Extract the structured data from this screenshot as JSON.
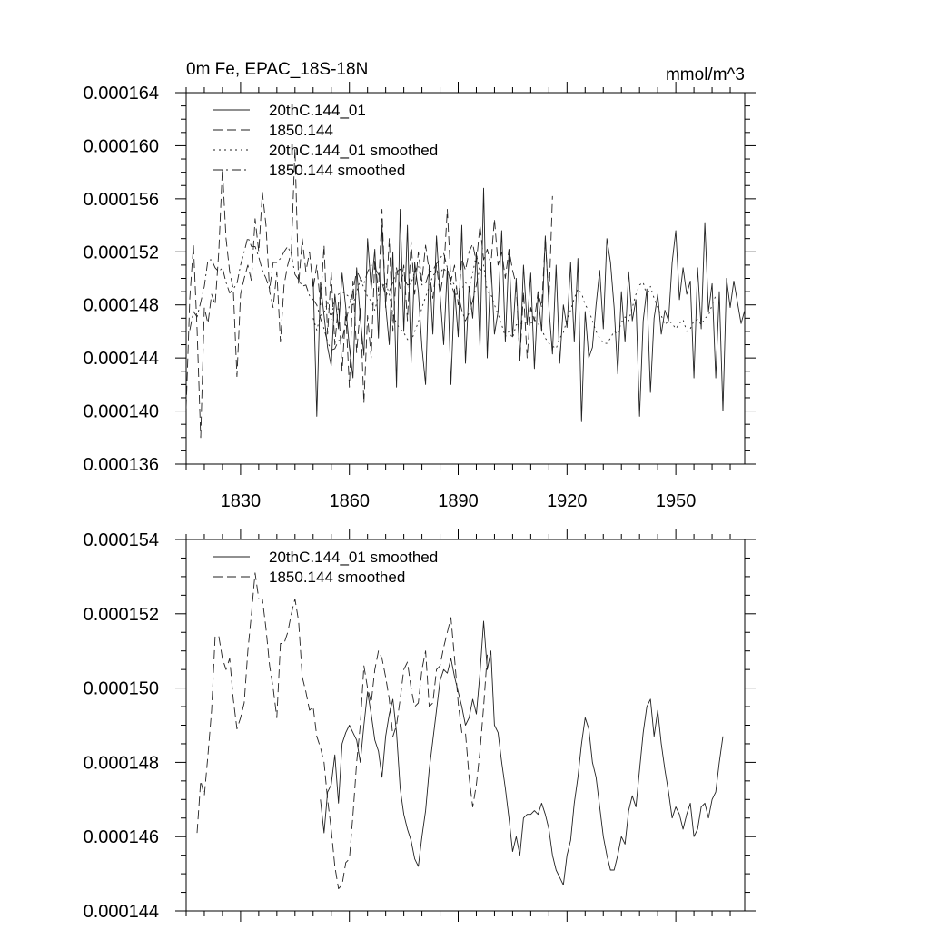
{
  "chart_data": [
    {
      "type": "line",
      "title": "0m Fe, EPAC_18S-18N",
      "units": "mmol/m^3",
      "xlabel": "",
      "ylabel": "",
      "xlim": [
        1815,
        1969
      ],
      "ylim": [
        0.000136,
        0.000164
      ],
      "xticks": [
        1830,
        1860,
        1890,
        1920,
        1950
      ],
      "xtick_labels": [
        "1830",
        "1860",
        "1890",
        "1920",
        "1950"
      ],
      "yticks": [
        0.000136,
        0.00014,
        0.000144,
        0.000148,
        0.000152,
        0.000156,
        0.00016,
        0.000164
      ],
      "ytick_labels": [
        "0.000136",
        "0.000140",
        "0.000144",
        "0.000148",
        "0.000152",
        "0.000156",
        "0.000160",
        "0.000164"
      ],
      "legend_position": "top-left",
      "series": [
        {
          "name": "20thC.144_01",
          "style": "solid",
          "x_start": 1850,
          "values": [
            0.00015,
            0.0001396,
            0.0001497,
            0.0001472,
            0.0001448,
            0.0001434,
            0.0001488,
            0.0001462,
            0.0001504,
            0.0001478,
            0.0001448,
            0.0001425,
            0.0001508,
            0.000147,
            0.0001442,
            0.000153,
            0.0001492,
            0.0001522,
            0.0001455,
            0.000154,
            0.000148,
            0.000145,
            0.000152,
            0.0001418,
            0.0001552,
            0.000146,
            0.000154,
            0.0001436,
            0.0001512,
            0.000149,
            0.0001448,
            0.000142,
            0.000151,
            0.0001458,
            0.0001532,
            0.0001488,
            0.000145,
            0.0001508,
            0.000142,
            0.0001492,
            0.0001456,
            0.000154,
            0.0001436,
            0.0001494,
            0.000147,
            0.000152,
            0.0001448,
            0.0001568,
            0.000144,
            0.0001512,
            0.0001458,
            0.0001475,
            0.0001536,
            0.0001452,
            0.000152,
            0.0001456,
            0.00015,
            0.0001438,
            0.000151,
            0.0001465,
            0.0001504,
            0.0001432,
            0.0001488,
            0.000146,
            0.0001532,
            0.0001478,
            0.0001443,
            0.000151,
            0.0001436,
            0.000148,
            0.0001463,
            0.0001512,
            0.0001452,
            0.0001515,
            0.0001392,
            0.0001475,
            0.000144,
            0.0001448,
            0.000148,
            0.0001506,
            0.0001462,
            0.000153,
            0.0001512,
            0.0001478,
            0.0001428,
            0.000149,
            0.0001452,
            0.0001505,
            0.0001468,
            0.0001484,
            0.0001396,
            0.0001468,
            0.0001492,
            0.0001414,
            0.000147,
            0.0001488,
            0.0001458,
            0.0001476,
            0.0001468,
            0.0001512,
            0.0001536,
            0.0001484,
            0.0001508,
            0.0001488,
            0.0001498,
            0.0001425,
            0.0001508,
            0.0001462,
            0.0001542,
            0.0001475,
            0.0001496,
            0.0001425,
            0.000149,
            0.00014,
            0.00015,
            0.0001478,
            0.0001498,
            0.0001482,
            0.0001466,
            0.0001476,
            0.0001522
          ]
        },
        {
          "name": "1850.144",
          "style": "dashed",
          "x_start": 1815,
          "values": [
            0.0001402,
            0.0001485,
            0.0001525,
            0.0001462,
            0.000138,
            0.0001478,
            0.0001466,
            0.0001488,
            0.000148,
            0.000152,
            0.0001583,
            0.000153,
            0.0001505,
            0.0001492,
            0.0001426,
            0.0001488,
            0.00015,
            0.000151,
            0.0001498,
            0.0001545,
            0.000152,
            0.0001565,
            0.000154,
            0.000149,
            0.0001478,
            0.0001505,
            0.0001452,
            0.0001495,
            0.000151,
            0.000152,
            0.0001598,
            0.0001495,
            0.000153,
            0.0001505,
            0.000152,
            0.0001492,
            0.000151,
            0.000148,
            0.0001525,
            0.0001458,
            0.0001505,
            0.000145,
            0.0001482,
            0.000143,
            0.0001475,
            0.0001418,
            0.0001498,
            0.0001444,
            0.0001478,
            0.0001406,
            0.0001472,
            0.000144,
            0.0001515,
            0.000149,
            0.0001552,
            0.0001478,
            0.000153,
            0.000146,
            0.0001508,
            0.0001492,
            0.000151,
            0.0001468,
            0.0001528,
            0.0001488,
            0.000152,
            0.0001498,
            0.0001525,
            0.0001505,
            0.0001485,
            0.000151,
            0.0001488,
            0.0001504,
            0.0001552,
            0.0001498,
            0.000151,
            0.000148,
            0.0001515,
            0.0001506,
            0.000152,
            0.0001526,
            0.0001512,
            0.000154,
            0.0001514,
            0.0001522,
            0.000151,
            0.0001545,
            0.000151,
            0.000152,
            0.00015,
            0.0001522,
            0.0001506,
            0.0001495,
            0.0001438,
            0.000149,
            0.000144,
            0.0001478,
            0.0001468,
            0.000149,
            0.0001478,
            0.000153,
            0.0001482,
            0.0001562
          ]
        },
        {
          "name": "20thC.144_01 smoothed",
          "style": "dotted",
          "x_start": 1850,
          "values": [
            0.000147,
            0.0001461,
            0.0001472,
            0.0001474,
            0.0001482,
            0.0001469,
            0.0001485,
            0.0001488,
            0.000149,
            0.0001488,
            0.0001486,
            0.000148,
            0.000149,
            0.0001499,
            0.0001493,
            0.0001486,
            0.0001483,
            0.0001476,
            0.0001487,
            0.0001493,
            0.0001497,
            0.0001488,
            0.0001473,
            0.0001466,
            0.0001462,
            0.0001459,
            0.0001454,
            0.0001452,
            0.000146,
            0.0001467,
            0.0001478,
            0.0001486,
            0.0001494,
            0.0001502,
            0.0001505,
            0.0001504,
            0.0001508,
            0.0001503,
            0.0001499,
            0.0001495,
            0.000149,
            0.0001492,
            0.0001497,
            0.0001493,
            0.0001504,
            0.0001518,
            0.0001505,
            0.000151,
            0.000149,
            0.0001488,
            0.000148,
            0.0001473,
            0.0001465,
            0.0001456,
            0.000146,
            0.0001455,
            0.0001465,
            0.0001466,
            0.0001466,
            0.0001467,
            0.0001466,
            0.0001469,
            0.0001466,
            0.0001462,
            0.0001455,
            0.0001451,
            0.0001449,
            0.0001447,
            0.0001455,
            0.0001459,
            0.0001469,
            0.0001476,
            0.0001485,
            0.0001492,
            0.0001489,
            0.000148,
            0.0001476,
            0.0001468,
            0.000146,
            0.0001455,
            0.0001451,
            0.0001451,
            0.0001455,
            0.000146,
            0.0001458,
            0.0001467,
            0.0001471,
            0.0001468,
            0.0001478,
            0.0001488,
            0.0001495,
            0.0001497,
            0.0001487,
            0.0001494,
            0.0001485,
            0.0001478,
            0.0001472,
            0.0001465,
            0.0001468,
            0.0001466,
            0.0001462,
            0.0001466,
            0.0001469,
            0.000146,
            0.0001462,
            0.0001468,
            0.0001469,
            0.0001465,
            0.000147,
            0.0001472,
            0.000148,
            0.0001487
          ]
        },
        {
          "name": "1850.144 smoothed",
          "style": "dash-dot",
          "x_start": 1816,
          "values": [
            0.0001461,
            0.0001475,
            0.0001471,
            0.0001482,
            0.0001494,
            0.0001514,
            0.0001514,
            0.0001508,
            0.0001505,
            0.0001508,
            0.0001497,
            0.0001489,
            0.0001492,
            0.0001496,
            0.000151,
            0.000152,
            0.0001531,
            0.0001524,
            0.0001524,
            0.0001516,
            0.0001506,
            0.00015,
            0.0001492,
            0.0001512,
            0.0001512,
            0.0001515,
            0.000152,
            0.0001524,
            0.0001518,
            0.0001503,
            0.0001499,
            0.0001494,
            0.0001495,
            0.0001487,
            0.0001484,
            0.000148,
            0.000147,
            0.0001462,
            0.0001452,
            0.0001446,
            0.0001447,
            0.0001453,
            0.0001454,
            0.0001466,
            0.000148,
            0.000149,
            0.0001506,
            0.00015,
            0.0001496,
            0.0001505,
            0.000151,
            0.0001508,
            0.0001503,
            0.0001497,
            0.0001487,
            0.000149,
            0.0001497,
            0.0001505,
            0.0001507,
            0.00015,
            0.0001495,
            0.0001496,
            0.0001505,
            0.000151,
            0.0001495,
            0.0001496,
            0.0001505,
            0.0001506,
            0.0001511,
            0.0001515,
            0.0001519,
            0.0001508,
            0.0001496,
            0.0001488,
            0.0001488,
            0.0001476,
            0.0001468,
            0.0001474,
            0.0001483,
            0.0001495,
            0.0001509
          ]
        }
      ]
    },
    {
      "type": "line",
      "title": "",
      "xlabel": "",
      "ylabel": "",
      "xlim": [
        1815,
        1969
      ],
      "ylim": [
        0.000144,
        0.000154
      ],
      "xticks": [
        1830,
        1860,
        1890,
        1920,
        1950
      ],
      "xtick_labels": [],
      "yticks": [
        0.000144,
        0.000146,
        0.000148,
        0.00015,
        0.000152,
        0.000154
      ],
      "ytick_labels": [
        "0.000144",
        "0.000146",
        "0.000148",
        "0.000150",
        "0.000152",
        "0.000154"
      ],
      "legend_position": "top-left",
      "series": [
        {
          "name": "20thC.144_01 smoothed",
          "style": "solid",
          "x_start": 1852,
          "values": [
            0.000147,
            0.0001461,
            0.0001472,
            0.0001474,
            0.0001482,
            0.0001469,
            0.0001485,
            0.0001488,
            0.000149,
            0.0001488,
            0.0001486,
            0.000148,
            0.000149,
            0.0001499,
            0.0001493,
            0.0001486,
            0.0001483,
            0.0001476,
            0.0001487,
            0.0001493,
            0.0001497,
            0.0001488,
            0.0001473,
            0.0001466,
            0.0001462,
            0.0001459,
            0.0001454,
            0.0001452,
            0.000146,
            0.0001467,
            0.0001478,
            0.0001486,
            0.0001494,
            0.0001502,
            0.0001505,
            0.0001504,
            0.0001508,
            0.0001503,
            0.0001499,
            0.0001495,
            0.000149,
            0.0001492,
            0.0001497,
            0.0001493,
            0.0001504,
            0.0001518,
            0.0001505,
            0.000151,
            0.000149,
            0.0001488,
            0.000148,
            0.0001473,
            0.0001465,
            0.0001456,
            0.000146,
            0.0001455,
            0.0001465,
            0.0001466,
            0.0001466,
            0.0001467,
            0.0001466,
            0.0001469,
            0.0001466,
            0.0001462,
            0.0001455,
            0.0001451,
            0.0001449,
            0.0001447,
            0.0001455,
            0.0001459,
            0.0001469,
            0.0001476,
            0.0001485,
            0.0001492,
            0.0001489,
            0.000148,
            0.0001476,
            0.0001468,
            0.000146,
            0.0001455,
            0.0001451,
            0.0001451,
            0.0001455,
            0.000146,
            0.0001458,
            0.0001467,
            0.0001471,
            0.0001468,
            0.0001478,
            0.0001488,
            0.0001495,
            0.0001497,
            0.0001487,
            0.0001494,
            0.0001485,
            0.0001478,
            0.0001472,
            0.0001465,
            0.0001468,
            0.0001466,
            0.0001462,
            0.0001466,
            0.0001469,
            0.000146,
            0.0001462,
            0.0001468,
            0.0001469,
            0.0001465,
            0.000147,
            0.0001472,
            0.000148,
            0.0001487
          ]
        },
        {
          "name": "1850.144 smoothed",
          "style": "dashed",
          "x_start": 1818,
          "values": [
            0.0001461,
            0.0001475,
            0.0001471,
            0.0001482,
            0.0001494,
            0.0001514,
            0.0001514,
            0.0001508,
            0.0001505,
            0.0001508,
            0.0001497,
            0.0001489,
            0.0001492,
            0.0001496,
            0.000151,
            0.000152,
            0.0001531,
            0.0001524,
            0.0001524,
            0.0001516,
            0.0001506,
            0.00015,
            0.0001492,
            0.0001512,
            0.0001512,
            0.0001515,
            0.000152,
            0.0001524,
            0.0001518,
            0.0001503,
            0.0001499,
            0.0001494,
            0.0001495,
            0.0001487,
            0.0001484,
            0.000148,
            0.000147,
            0.0001462,
            0.0001452,
            0.0001446,
            0.0001447,
            0.0001453,
            0.0001454,
            0.0001466,
            0.000148,
            0.000149,
            0.0001506,
            0.00015,
            0.0001496,
            0.0001505,
            0.000151,
            0.0001508,
            0.0001503,
            0.0001497,
            0.0001487,
            0.000149,
            0.0001497,
            0.0001505,
            0.0001507,
            0.00015,
            0.0001495,
            0.0001496,
            0.0001505,
            0.000151,
            0.0001495,
            0.0001496,
            0.0001505,
            0.0001506,
            0.0001511,
            0.0001515,
            0.0001519,
            0.0001508,
            0.0001496,
            0.0001488,
            0.0001488,
            0.0001476,
            0.0001468,
            0.0001474,
            0.0001483,
            0.0001495,
            0.0001509
          ]
        }
      ]
    }
  ]
}
